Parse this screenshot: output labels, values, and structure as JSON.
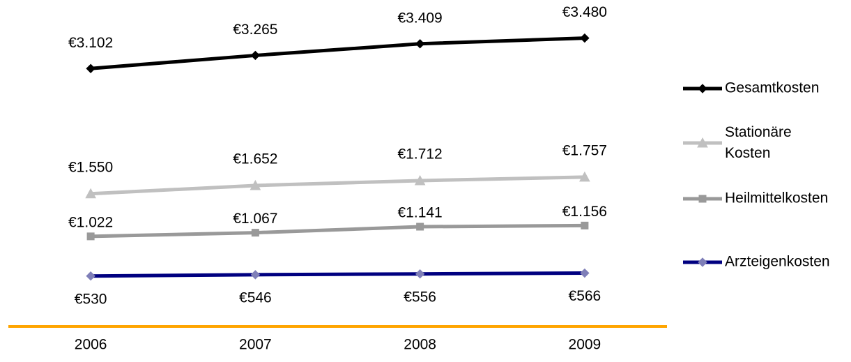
{
  "chart_data": {
    "type": "line",
    "categories": [
      "2006",
      "2007",
      "2008",
      "2009"
    ],
    "ylim": [
      0,
      3900
    ],
    "axis_color": "#ffa500",
    "series": [
      {
        "name": "Gesamtkosten",
        "color": "#000000",
        "marker": "diamond",
        "marker_color": "#000000",
        "values": [
          3102,
          3265,
          3409,
          3480
        ],
        "value_labels": [
          "€3.102",
          "€3.265",
          "€3.409",
          "€3.480"
        ]
      },
      {
        "name": "Stationäre Kosten",
        "color": "#c0c0c0",
        "marker": "triangle",
        "marker_color": "#c0c0c0",
        "values": [
          1550,
          1652,
          1712,
          1757
        ],
        "value_labels": [
          "€1.550",
          "€1.652",
          "€1.712",
          "€1.757"
        ]
      },
      {
        "name": "Heilmittelkosten",
        "color": "#999999",
        "marker": "square",
        "marker_color": "#999999",
        "values": [
          1022,
          1067,
          1141,
          1156
        ],
        "value_labels": [
          "€1.022",
          "€1.067",
          "€1.141",
          "€1.156"
        ]
      },
      {
        "name": "Arzteigenkosten",
        "color": "#000080",
        "marker": "diamond",
        "marker_color": "#7f7fb8",
        "values": [
          530,
          546,
          556,
          566
        ],
        "value_labels": [
          "€530",
          "€546",
          "€556",
          "€566"
        ]
      }
    ]
  }
}
